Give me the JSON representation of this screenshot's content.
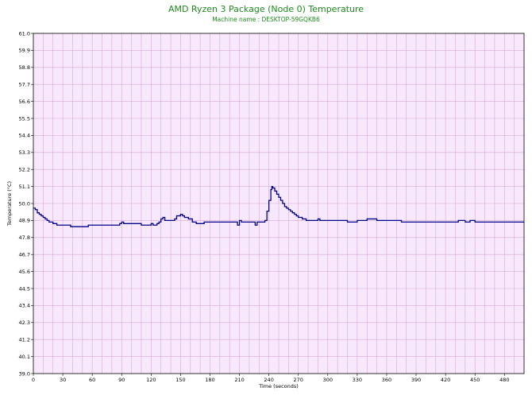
{
  "chart_data": {
    "type": "line",
    "title": "AMD Ryzen 3 Package (Node 0) Temperature",
    "subtitle": "Machine name : DESKTOP-59GQKB6",
    "xlabel": "Time (seconds)",
    "ylabel": "Temperature (°C)",
    "xlim": [
      0,
      500
    ],
    "ylim": [
      39.0,
      61.0
    ],
    "xticks": [
      0,
      30,
      60,
      90,
      120,
      150,
      180,
      210,
      240,
      270,
      300,
      330,
      360,
      390,
      420,
      450,
      480
    ],
    "yticks": [
      "39.0",
      "40.1",
      "41.2",
      "42.3",
      "43.4",
      "44.5",
      "45.6",
      "46.7",
      "47.8",
      "48.9",
      "50.0",
      "51.1",
      "52.2",
      "53.3",
      "54.4",
      "55.5",
      "56.6",
      "57.7",
      "58.8",
      "59.9",
      "61.0"
    ],
    "grid": true,
    "colors": {
      "line": "#00008b",
      "plot_background": "#f8e8fb",
      "grid": "#d8a8d8",
      "title": "#1e8a1e"
    },
    "series": [
      {
        "values": [
          [
            0,
            49.7
          ],
          [
            2,
            49.6
          ],
          [
            4,
            49.4
          ],
          [
            6,
            49.3
          ],
          [
            8,
            49.2
          ],
          [
            10,
            49.1
          ],
          [
            12,
            49.0
          ],
          [
            14,
            48.9
          ],
          [
            16,
            48.8
          ],
          [
            20,
            48.7
          ],
          [
            24,
            48.6
          ],
          [
            38,
            48.5
          ],
          [
            56,
            48.6
          ],
          [
            88,
            48.7
          ],
          [
            90,
            48.8
          ],
          [
            92,
            48.7
          ],
          [
            110,
            48.6
          ],
          [
            120,
            48.7
          ],
          [
            122,
            48.6
          ],
          [
            126,
            48.7
          ],
          [
            128,
            48.8
          ],
          [
            130,
            49.0
          ],
          [
            132,
            49.1
          ],
          [
            134,
            48.9
          ],
          [
            142,
            48.9
          ],
          [
            144,
            49.0
          ],
          [
            146,
            49.2
          ],
          [
            150,
            49.3
          ],
          [
            152,
            49.2
          ],
          [
            154,
            49.1
          ],
          [
            158,
            49.0
          ],
          [
            162,
            48.8
          ],
          [
            166,
            48.7
          ],
          [
            174,
            48.8
          ],
          [
            208,
            48.6
          ],
          [
            210,
            48.9
          ],
          [
            212,
            48.8
          ],
          [
            226,
            48.6
          ],
          [
            228,
            48.8
          ],
          [
            236,
            48.9
          ],
          [
            238,
            49.5
          ],
          [
            240,
            50.2
          ],
          [
            242,
            50.9
          ],
          [
            243,
            51.1
          ],
          [
            244,
            51.0
          ],
          [
            246,
            50.8
          ],
          [
            248,
            50.6
          ],
          [
            250,
            50.4
          ],
          [
            252,
            50.2
          ],
          [
            254,
            50.0
          ],
          [
            256,
            49.8
          ],
          [
            258,
            49.7
          ],
          [
            260,
            49.6
          ],
          [
            262,
            49.5
          ],
          [
            264,
            49.4
          ],
          [
            266,
            49.3
          ],
          [
            268,
            49.2
          ],
          [
            270,
            49.1
          ],
          [
            274,
            49.0
          ],
          [
            278,
            48.9
          ],
          [
            290,
            49.0
          ],
          [
            292,
            48.9
          ],
          [
            320,
            48.8
          ],
          [
            330,
            48.9
          ],
          [
            340,
            49.0
          ],
          [
            350,
            48.9
          ],
          [
            375,
            48.8
          ],
          [
            433,
            48.9
          ],
          [
            440,
            48.8
          ],
          [
            445,
            48.9
          ],
          [
            450,
            48.8
          ],
          [
            500,
            48.8
          ]
        ]
      }
    ]
  }
}
